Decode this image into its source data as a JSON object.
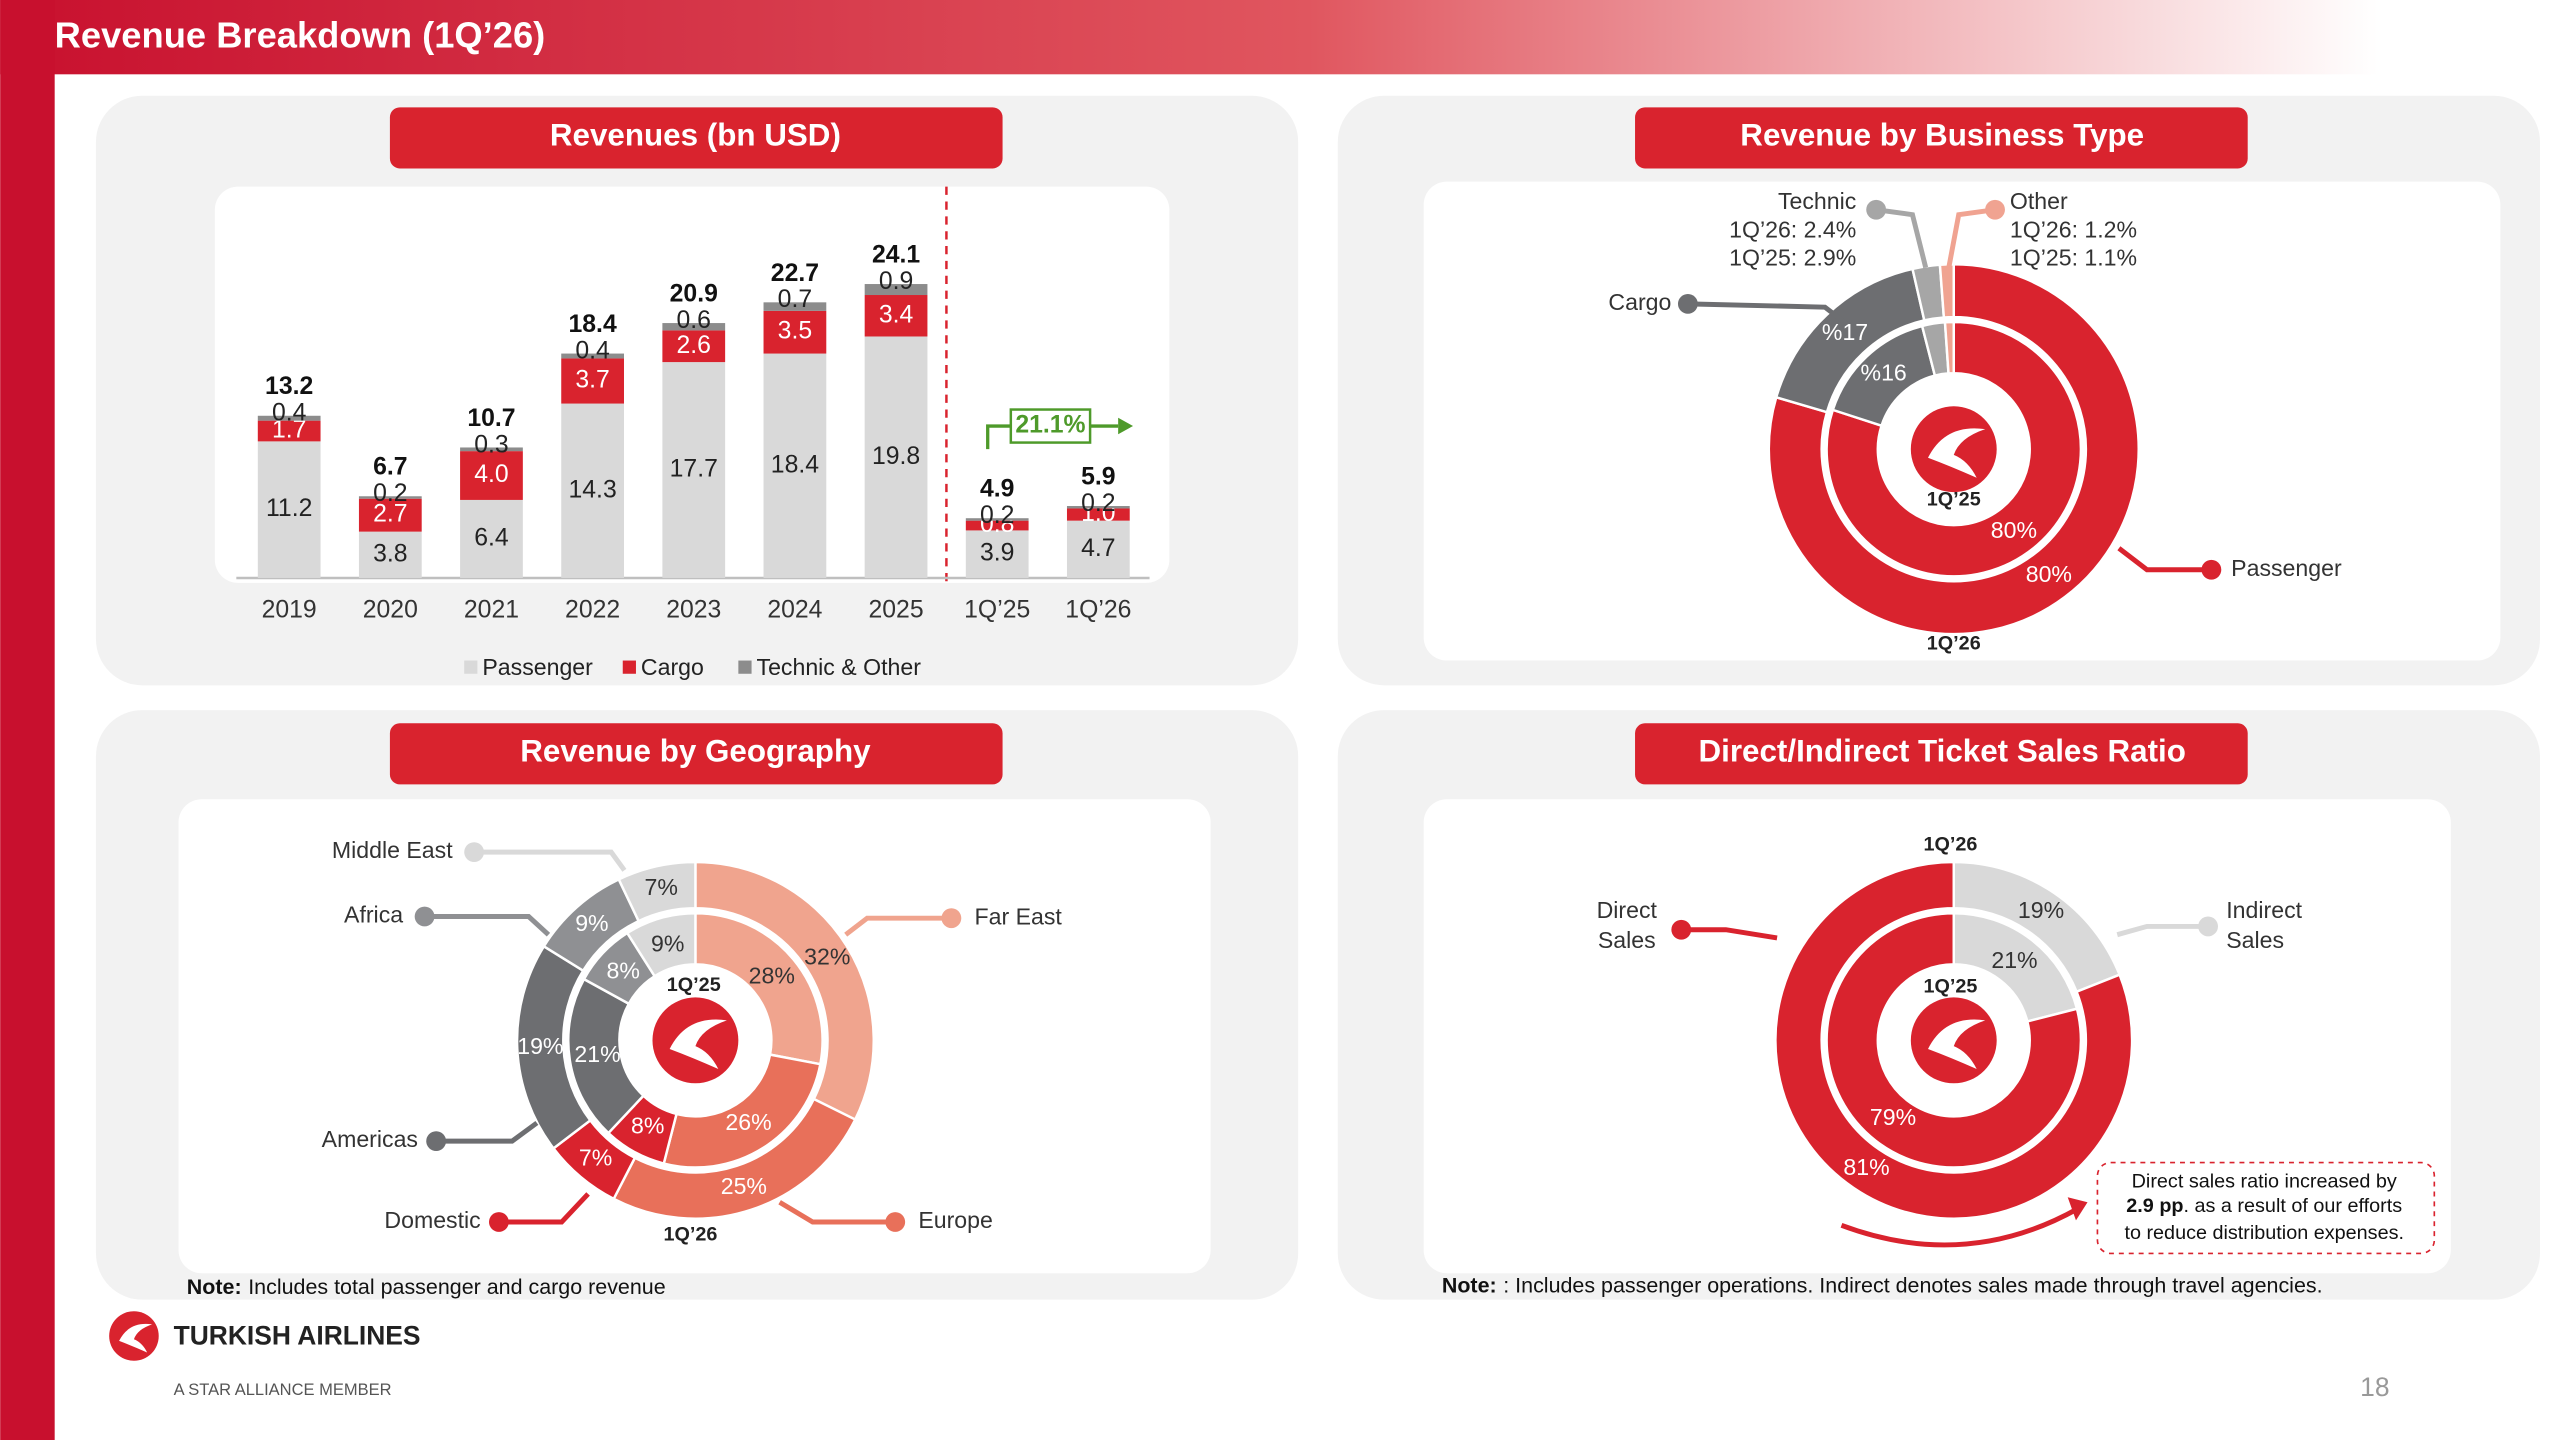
{
  "header": {
    "title": "Revenue Breakdown (1Q’26)"
  },
  "chart_data": [
    {
      "type": "bar",
      "stacked": true,
      "title": "Revenues (bn USD)",
      "categories": [
        "2019",
        "2020",
        "2021",
        "2022",
        "2023",
        "2024",
        "2025",
        "1Q’25",
        "1Q’26"
      ],
      "series": [
        {
          "name": "Passenger",
          "color": "#d9d9d9",
          "values": [
            11.2,
            3.8,
            6.4,
            14.3,
            17.7,
            18.4,
            19.8,
            3.9,
            4.7
          ]
        },
        {
          "name": "Cargo",
          "color": "#d9232e",
          "values": [
            1.7,
            2.7,
            4.0,
            3.7,
            2.6,
            3.5,
            3.4,
            0.8,
            1.0
          ],
          "value_labels": [
            "1.7",
            "2.7",
            "4.0",
            "3.7",
            "2.6",
            "3.5",
            "3.4",
            "0.8",
            "1.0"
          ]
        },
        {
          "name": "Technic & Other",
          "color": "#8c8c8c",
          "values": [
            0.4,
            0.2,
            0.3,
            0.4,
            0.6,
            0.7,
            0.9,
            0.2,
            0.2
          ]
        }
      ],
      "totals": [
        13.2,
        6.7,
        10.7,
        18.4,
        20.9,
        22.7,
        24.1,
        4.9,
        5.9
      ],
      "annotation": "21.1%",
      "legend": "bottom"
    },
    {
      "type": "donut",
      "title": "Revenue by Business Type",
      "categories": [
        "Passenger",
        "Cargo",
        "Technic",
        "Other"
      ],
      "colors": [
        "#d9232e",
        "#6d6e71",
        "#a6a6a6",
        "#f0a391"
      ],
      "series": [
        {
          "name": "1Q’26",
          "values": [
            80,
            17,
            2.4,
            1.2
          ],
          "value_labels": [
            "80%",
            "%17",
            "1Q’26: 2.4%",
            "1Q’26: 1.2%"
          ]
        },
        {
          "name": "1Q’25",
          "values": [
            80,
            16,
            2.9,
            1.1
          ],
          "value_labels": [
            "80%",
            "%16",
            "1Q’25: 2.9%",
            "1Q’25: 1.1%"
          ]
        }
      ]
    },
    {
      "type": "donut",
      "title": "Revenue by Geography",
      "categories": [
        "Far East",
        "Europe",
        "Domestic",
        "Americas",
        "Africa",
        "Middle East"
      ],
      "colors": [
        "#f0a48e",
        "#e8705a",
        "#d9232e",
        "#6d6e71",
        "#8f9093",
        "#d9d9d9"
      ],
      "series": [
        {
          "name": "1Q’26",
          "values": [
            32,
            25,
            7,
            19,
            9,
            7
          ],
          "value_labels": [
            "32%",
            "25%",
            "7%",
            "19%",
            "9%",
            "7%"
          ]
        },
        {
          "name": "1Q’25",
          "values": [
            28,
            26,
            8,
            21,
            8,
            9
          ],
          "value_labels": [
            "28%",
            "26%",
            "8%",
            "21%",
            "8%",
            "9%"
          ]
        }
      ]
    },
    {
      "type": "donut",
      "title": "Direct/Indirect Ticket Sales Ratio",
      "categories": [
        "Indirect Sales",
        "Direct Sales"
      ],
      "colors": [
        "#d9d9d9",
        "#d9232e"
      ],
      "series": [
        {
          "name": "1Q’26",
          "values": [
            19,
            81
          ],
          "value_labels": [
            "19%",
            "81%"
          ]
        },
        {
          "name": "1Q’25",
          "values": [
            21,
            79
          ],
          "value_labels": [
            "21%",
            "79%"
          ]
        }
      ],
      "annotation": [
        "Direct sales ratio increased by",
        "2.9 pp",
        ". as a result of our efforts",
        "to reduce distribution expenses."
      ]
    }
  ],
  "notes": [
    {
      "label": "Note:",
      "text": "Includes total passenger and cargo revenue"
    },
    {
      "label": "Note:",
      "text": ": Includes passenger operations. Indirect denotes sales made through travel agencies."
    }
  ],
  "footer": {
    "brand": "TURKISH AIRLINES",
    "tagline": "A STAR ALLIANCE MEMBER",
    "page": 18
  }
}
